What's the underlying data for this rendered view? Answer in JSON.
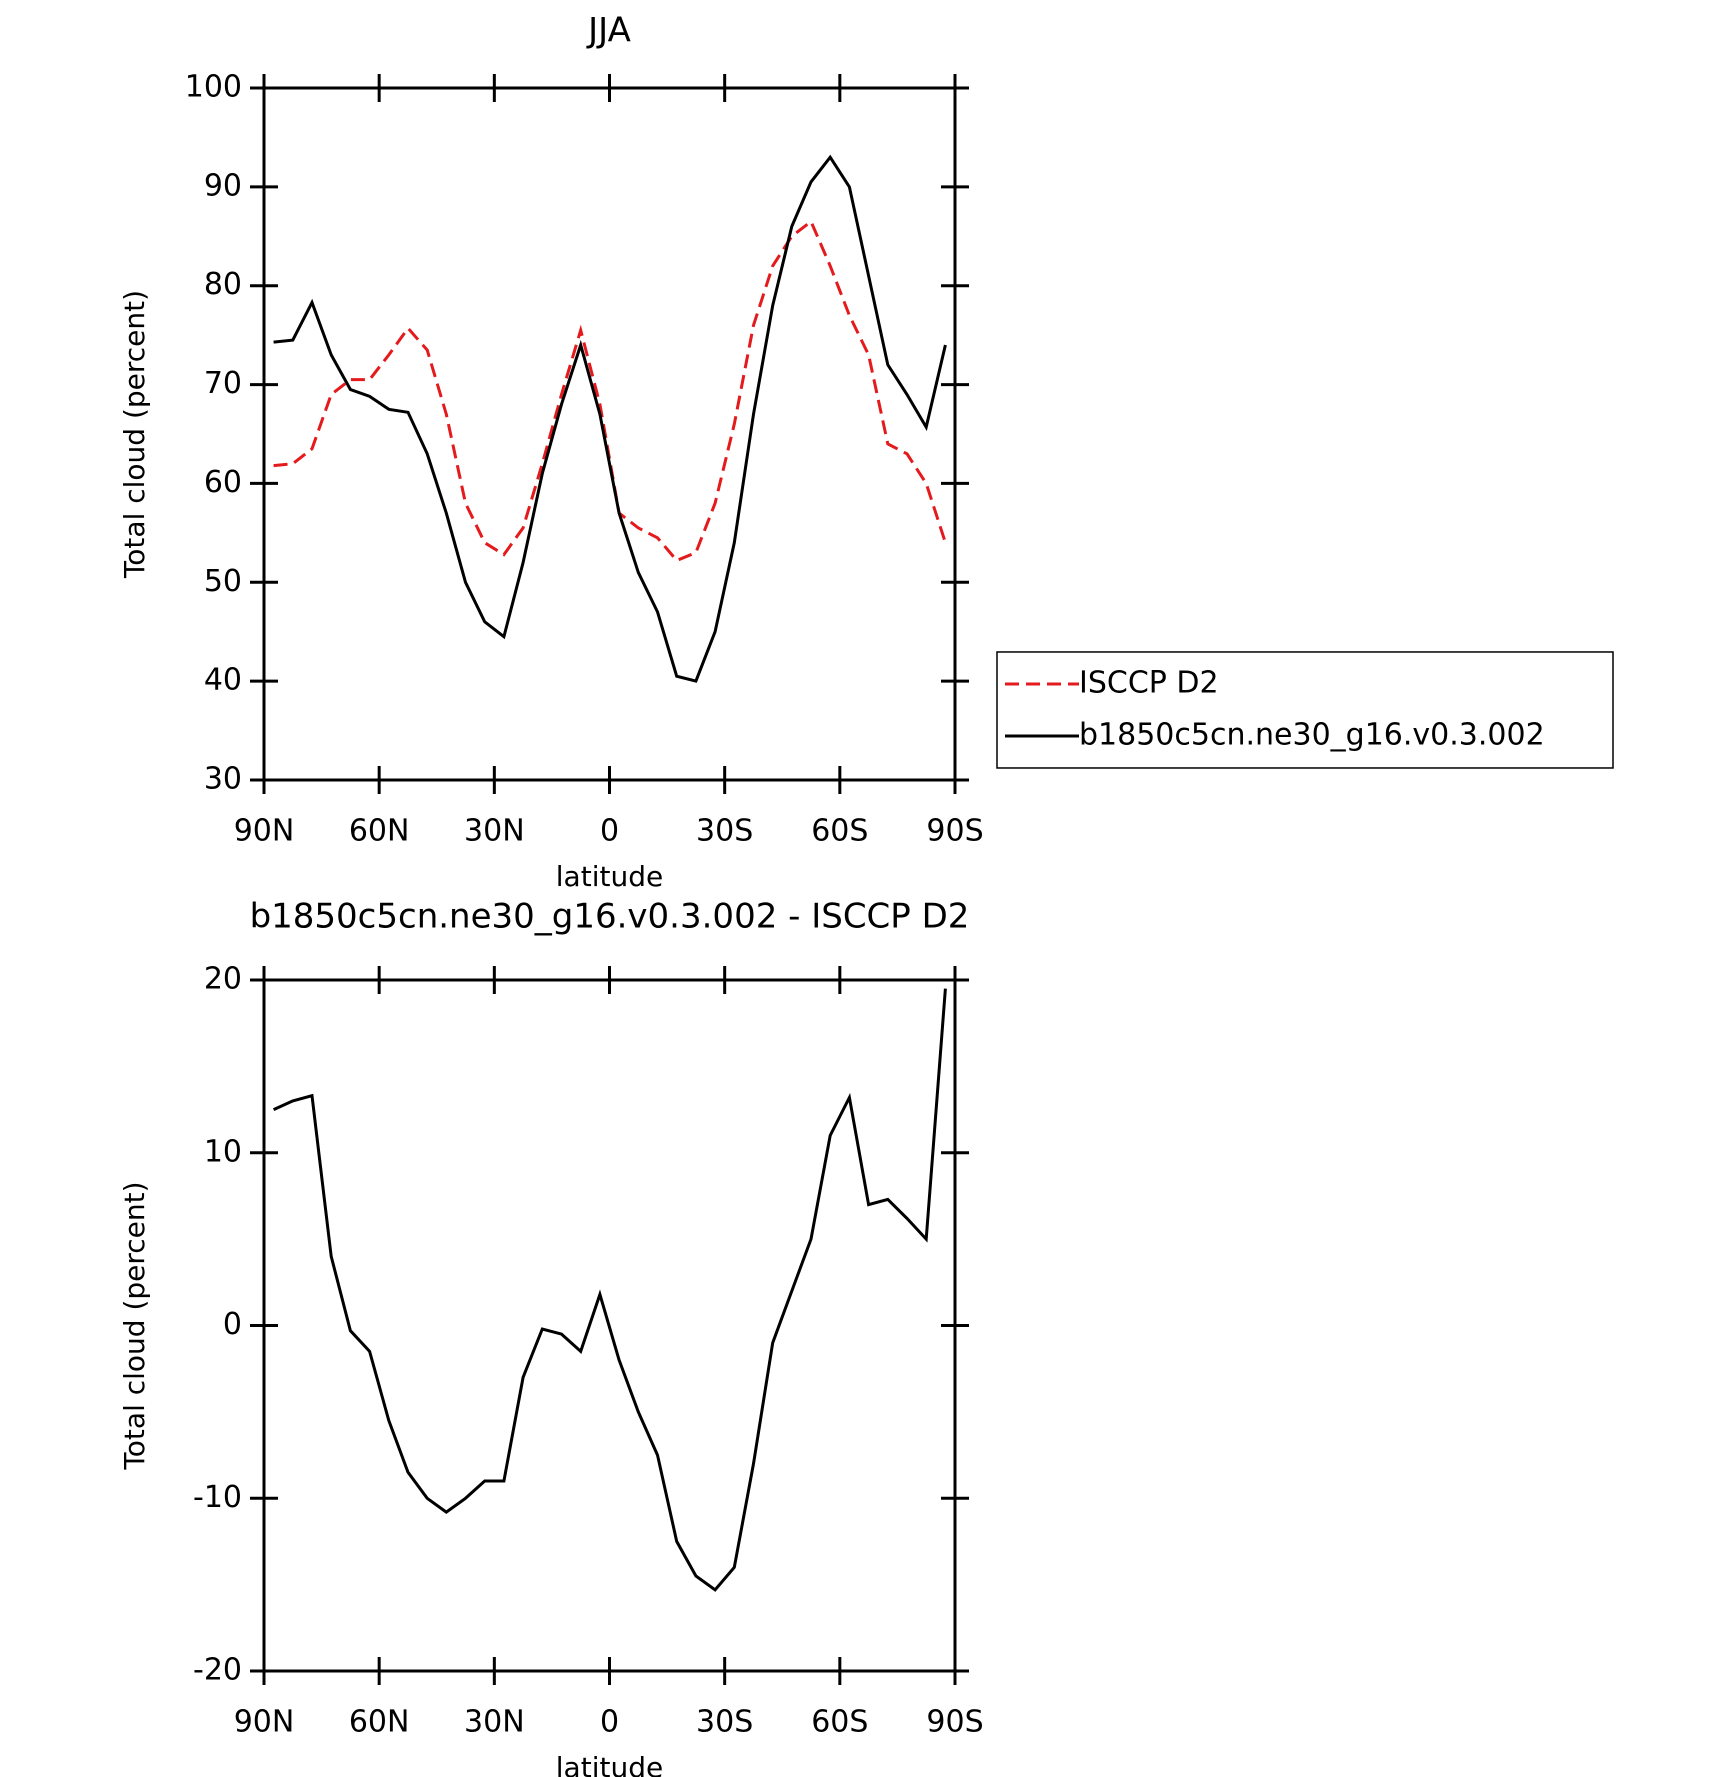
{
  "chart_data": [
    {
      "type": "line",
      "title": "JJA",
      "ylabel": "Total cloud (percent)",
      "xlabel": "latitude",
      "x": [
        87.5,
        82.5,
        77.5,
        72.5,
        67.5,
        62.5,
        57.5,
        52.5,
        47.5,
        42.5,
        37.5,
        32.5,
        27.5,
        22.5,
        17.5,
        12.5,
        7.5,
        2.5,
        -2.5,
        -7.5,
        -12.5,
        -17.5,
        -22.5,
        -27.5,
        -32.5,
        -37.5,
        -42.5,
        -47.5,
        -52.5,
        -57.5,
        -62.5,
        -67.5,
        -72.5,
        -77.5,
        -82.5,
        -87.5
      ],
      "series": [
        {
          "name": "ISCCP D2",
          "color": "#e41a1c",
          "dash": true,
          "values": [
            61.8,
            62,
            63.5,
            69,
            70.5,
            70.5,
            73,
            75.7,
            73.5,
            67,
            58,
            54,
            52.8,
            55.5,
            62,
            69,
            75.5,
            68,
            57,
            55.5,
            54.5,
            52.2,
            53,
            58,
            66,
            76,
            82,
            85,
            86.5,
            82,
            77,
            73,
            64,
            63,
            60,
            54
          ]
        },
        {
          "name": "b1850c5cn.ne30_g16.v0.3.002",
          "color": "#000000",
          "dash": false,
          "values": [
            74.3,
            74.5,
            78.3,
            73,
            69.5,
            68.8,
            67.5,
            67.2,
            63,
            57,
            50,
            46,
            44.5,
            52,
            61,
            68,
            74,
            67,
            57,
            51,
            47,
            40.5,
            40,
            45,
            54,
            67,
            78,
            86,
            90.5,
            93,
            90,
            81,
            72,
            69,
            65.7,
            74
          ]
        }
      ],
      "xlim": [
        90,
        -90
      ],
      "xticks": [
        {
          "value": 90,
          "label": "90N"
        },
        {
          "value": 60,
          "label": "60N"
        },
        {
          "value": 30,
          "label": "30N"
        },
        0,
        {
          "value": -30,
          "label": "30S"
        },
        {
          "value": -60,
          "label": "60S"
        },
        {
          "value": -90,
          "label": "90S"
        }
      ],
      "ylim": [
        30,
        100
      ],
      "yticks": [
        30,
        40,
        50,
        60,
        70,
        80,
        90,
        100
      ],
      "legend": "right"
    },
    {
      "type": "line",
      "title": "b1850c5cn.ne30_g16.v0.3.002 - ISCCP D2",
      "ylabel": "Total cloud (percent)",
      "xlabel": "latitude",
      "x": [
        87.5,
        82.5,
        77.5,
        72.5,
        67.5,
        62.5,
        57.5,
        52.5,
        47.5,
        42.5,
        37.5,
        32.5,
        27.5,
        22.5,
        17.5,
        12.5,
        7.5,
        2.5,
        -2.5,
        -7.5,
        -12.5,
        -17.5,
        -22.5,
        -27.5,
        -32.5,
        -37.5,
        -42.5,
        -47.5,
        -52.5,
        -57.5,
        -62.5,
        -67.5,
        -72.5,
        -77.5,
        -82.5,
        -87.5
      ],
      "series": [
        {
          "color": "#000000",
          "dash": false,
          "values": [
            12.5,
            13,
            13.3,
            4,
            -0.3,
            -1.5,
            -5.5,
            -8.5,
            -10,
            -10.8,
            -10,
            -9,
            -9,
            -3,
            -0.2,
            -0.5,
            -1.5,
            1.8,
            -2,
            -5,
            -7.5,
            -12.5,
            -14.5,
            -15.3,
            -14,
            -8,
            -1,
            2,
            5,
            11,
            13.2,
            7,
            7.3,
            6.2,
            5,
            19.5
          ]
        }
      ],
      "xlim": [
        90,
        -90
      ],
      "xticks": [
        {
          "value": 90,
          "label": "90N"
        },
        {
          "value": 60,
          "label": "60N"
        },
        {
          "value": 30,
          "label": "30N"
        },
        0,
        {
          "value": -30,
          "label": "30S"
        },
        {
          "value": -60,
          "label": "60S"
        },
        {
          "value": -90,
          "label": "90S"
        }
      ],
      "ylim": [
        -20,
        20
      ],
      "yticks": [
        -20,
        -10,
        0,
        10,
        20
      ]
    }
  ]
}
